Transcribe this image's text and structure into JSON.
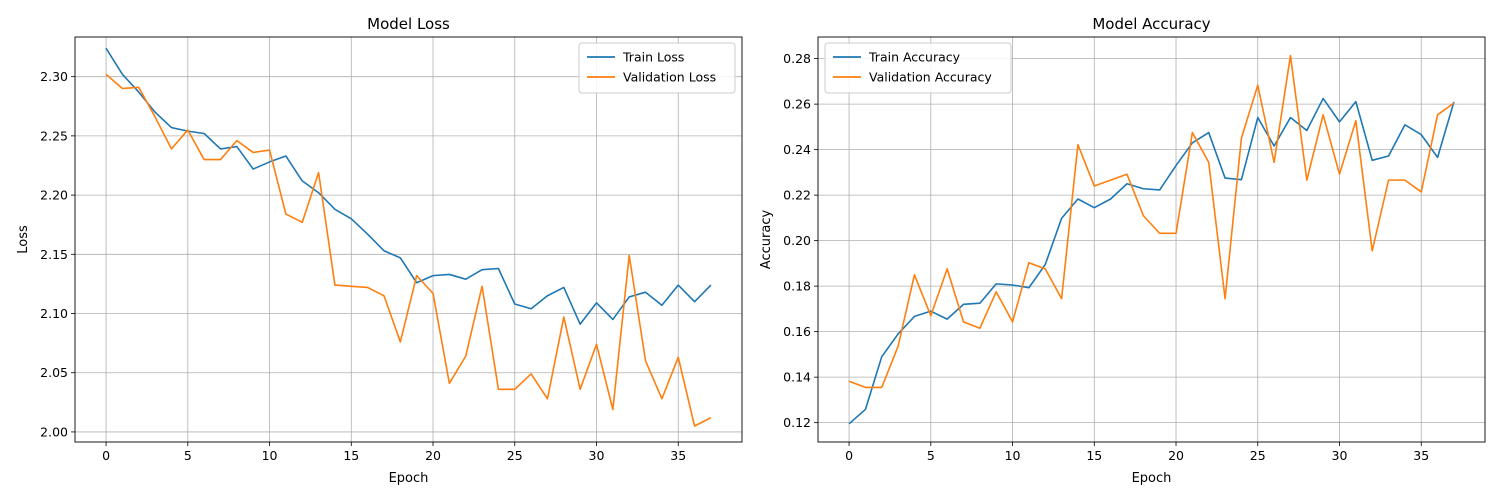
{
  "chart_data": [
    {
      "type": "line",
      "title": "Model Loss",
      "xlabel": "Epoch",
      "ylabel": "Loss",
      "xlim": [
        -1.9,
        38.9
      ],
      "ylim": [
        1.9915,
        2.3335
      ],
      "xticks": [
        0,
        5,
        10,
        15,
        20,
        25,
        30,
        35
      ],
      "yticks": [
        2.0,
        2.05,
        2.1,
        2.15,
        2.2,
        2.25,
        2.3
      ],
      "ytick_labels": [
        "2.00",
        "2.05",
        "2.10",
        "2.15",
        "2.20",
        "2.25",
        "2.30"
      ],
      "grid": true,
      "legend_position": "top-right",
      "x": [
        0,
        1,
        2,
        3,
        4,
        5,
        6,
        7,
        8,
        9,
        10,
        11,
        12,
        13,
        14,
        15,
        16,
        17,
        18,
        19,
        20,
        21,
        22,
        23,
        24,
        25,
        26,
        27,
        28,
        29,
        30,
        31,
        32,
        33,
        34,
        35,
        36,
        37
      ],
      "series": [
        {
          "name": "Train Loss",
          "color": "#1f77b4",
          "values": [
            2.324,
            2.302,
            2.287,
            2.27,
            2.257,
            2.254,
            2.252,
            2.239,
            2.241,
            2.222,
            2.228,
            2.233,
            2.212,
            2.202,
            2.188,
            2.18,
            2.167,
            2.153,
            2.147,
            2.126,
            2.132,
            2.133,
            2.129,
            2.137,
            2.138,
            2.108,
            2.104,
            2.115,
            2.122,
            2.091,
            2.109,
            2.095,
            2.114,
            2.118,
            2.107,
            2.124,
            2.11,
            2.124
          ]
        },
        {
          "name": "Validation Loss",
          "color": "#ff7f0e",
          "values": [
            2.302,
            2.29,
            2.291,
            2.266,
            2.239,
            2.255,
            2.23,
            2.23,
            2.246,
            2.236,
            2.238,
            2.184,
            2.177,
            2.219,
            2.124,
            2.123,
            2.122,
            2.115,
            2.076,
            2.132,
            2.117,
            2.041,
            2.064,
            2.123,
            2.036,
            2.036,
            2.049,
            2.028,
            2.097,
            2.036,
            2.074,
            2.019,
            2.149,
            2.06,
            2.028,
            2.063,
            2.005,
            2.012
          ]
        }
      ]
    },
    {
      "type": "line",
      "title": "Model Accuracy",
      "xlabel": "Epoch",
      "ylabel": "Accuracy",
      "xlim": [
        -1.9,
        38.9
      ],
      "ylim": [
        0.1115,
        0.2895
      ],
      "xticks": [
        0,
        5,
        10,
        15,
        20,
        25,
        30,
        35
      ],
      "yticks": [
        0.12,
        0.14,
        0.16,
        0.18,
        0.2,
        0.22,
        0.24,
        0.26,
        0.28
      ],
      "ytick_labels": [
        "0.12",
        "0.14",
        "0.16",
        "0.18",
        "0.20",
        "0.22",
        "0.24",
        "0.26",
        "0.28"
      ],
      "grid": true,
      "legend_position": "top-left",
      "x": [
        0,
        1,
        2,
        3,
        4,
        5,
        6,
        7,
        8,
        9,
        10,
        11,
        12,
        13,
        14,
        15,
        16,
        17,
        18,
        19,
        20,
        21,
        22,
        23,
        24,
        25,
        26,
        27,
        28,
        29,
        30,
        31,
        32,
        33,
        34,
        35,
        36,
        37
      ],
      "series": [
        {
          "name": "Train Accuracy",
          "color": "#1f77b4",
          "values": [
            0.1195,
            0.1258,
            0.149,
            0.159,
            0.1667,
            0.169,
            0.1655,
            0.172,
            0.1725,
            0.181,
            0.1805,
            0.1793,
            0.1895,
            0.2098,
            0.2183,
            0.2145,
            0.2183,
            0.225,
            0.2228,
            0.2223,
            0.233,
            0.243,
            0.2475,
            0.2275,
            0.2268,
            0.2541,
            0.2416,
            0.2541,
            0.2484,
            0.2625,
            0.2522,
            0.2611,
            0.2353,
            0.2372,
            0.2509,
            0.2466,
            0.2366,
            0.261
          ]
        },
        {
          "name": "Validation Accuracy",
          "color": "#ff7f0e",
          "values": [
            0.1382,
            0.1355,
            0.1355,
            0.1536,
            0.185,
            0.167,
            0.1876,
            0.1643,
            0.1615,
            0.1775,
            0.1643,
            0.1903,
            0.1876,
            0.1745,
            0.2422,
            0.224,
            0.2266,
            0.2292,
            0.211,
            0.2032,
            0.2032,
            0.2475,
            0.2344,
            0.1745,
            0.245,
            0.2683,
            0.2344,
            0.2813,
            0.2266,
            0.2553,
            0.2292,
            0.2527,
            0.1955,
            0.2266,
            0.2266,
            0.2214,
            0.2553,
            0.2605
          ]
        }
      ]
    }
  ]
}
